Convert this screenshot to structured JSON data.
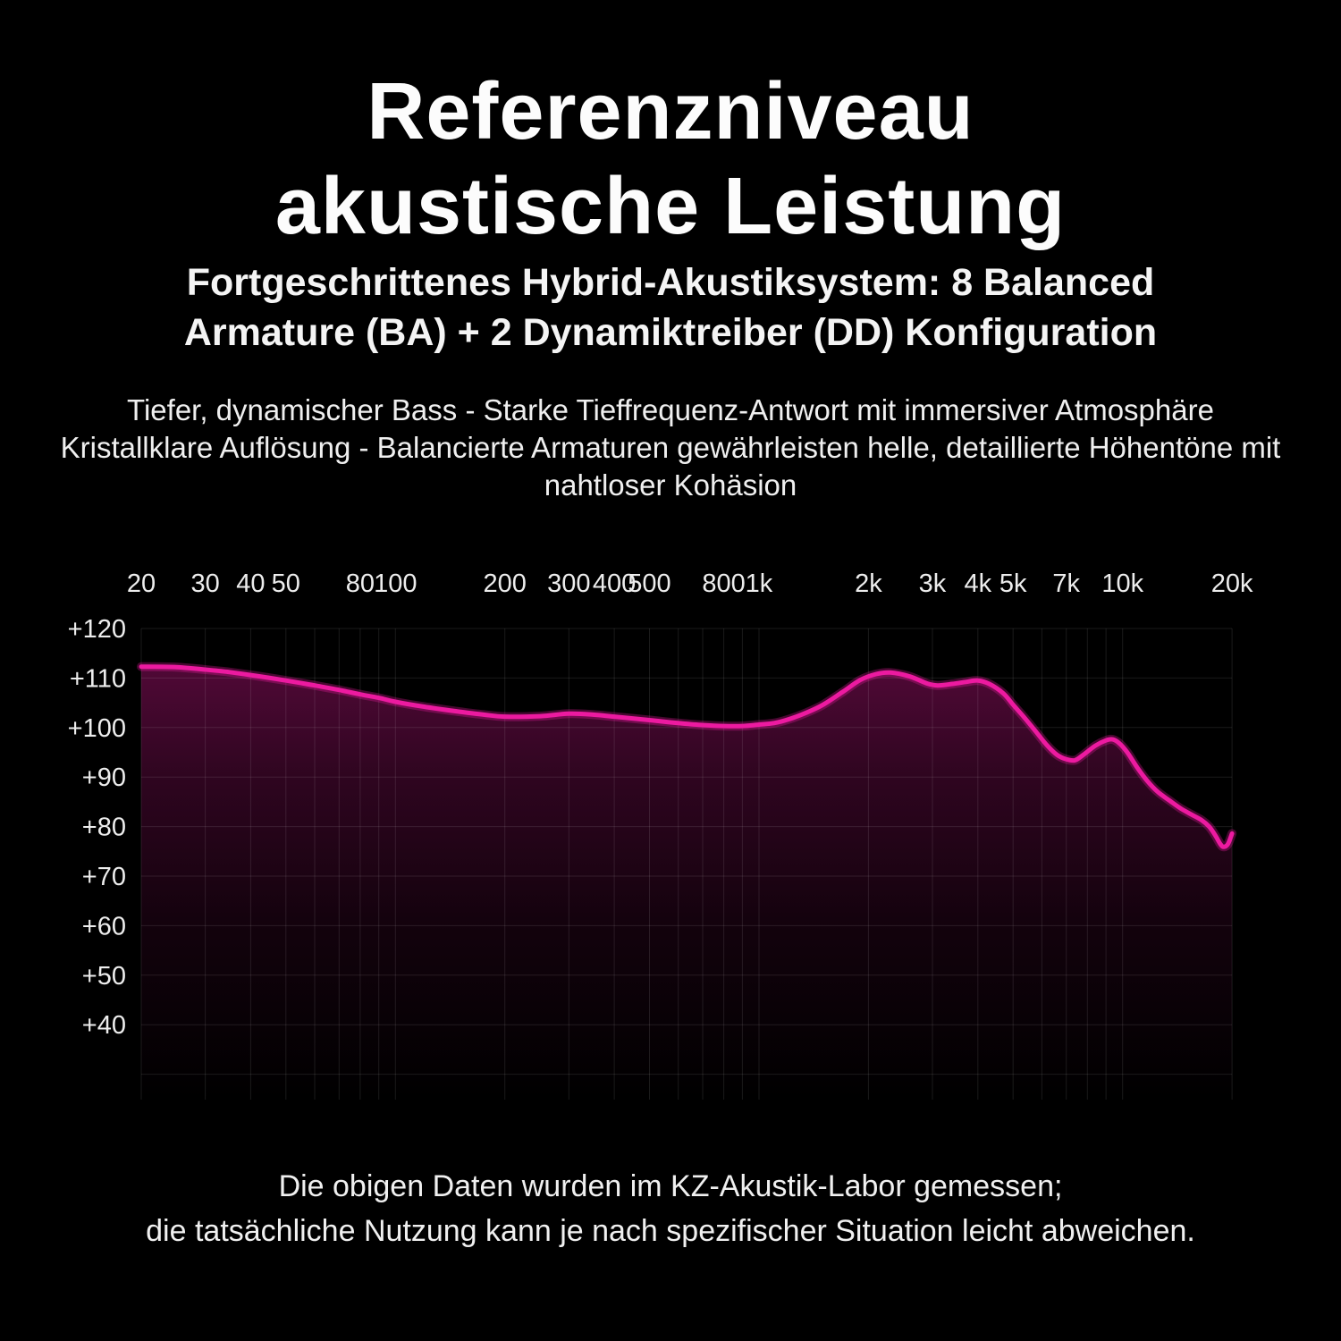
{
  "page": {
    "background": "#000000",
    "accent": "#ec1aa0"
  },
  "header": {
    "title_line1": "Referenzniveau",
    "title_line2": "akustische Leistung",
    "subtitle_line1": "Fortgeschrittenes Hybrid-Akustiksystem: 8 Balanced",
    "subtitle_line2": "Armature (BA) + 2 Dynamiktreiber (DD) Konfiguration",
    "description_line1": "Tiefer, dynamischer Bass - Starke Tieffrequenz-Antwort mit immersiver Atmosphäre",
    "description_line2": "Kristallklare Auflösung - Balancierte Armaturen gewährleisten helle, detaillierte Höhentöne mit",
    "description_line3": "nahtloser Kohäsion"
  },
  "footer": {
    "line1": "Die obigen Daten wurden im KZ-Akustik-Labor gemessen;",
    "line2": "die tatsächliche Nutzung kann je nach spezifischer Situation leicht abweichen."
  },
  "chart_data": {
    "type": "line",
    "title": "",
    "xlabel": "",
    "ylabel": "",
    "x_scale": "log",
    "x_range_hz": [
      20,
      20000
    ],
    "ylim": [
      30,
      122
    ],
    "grid": true,
    "legend": false,
    "line_color": "#ec1aa0",
    "tick_color": "#ededed",
    "grid_color": "rgba(255,255,255,0.10)",
    "x_ticks": [
      {
        "f": 20,
        "label": "20"
      },
      {
        "f": 30,
        "label": "30"
      },
      {
        "f": 40,
        "label": "40"
      },
      {
        "f": 50,
        "label": "50"
      },
      {
        "f": 80,
        "label": "80"
      },
      {
        "f": 100,
        "label": "100"
      },
      {
        "f": 200,
        "label": "200"
      },
      {
        "f": 300,
        "label": "300"
      },
      {
        "f": 400,
        "label": "400"
      },
      {
        "f": 500,
        "label": "500"
      },
      {
        "f": 800,
        "label": "800"
      },
      {
        "f": 1000,
        "label": "1k"
      },
      {
        "f": 2000,
        "label": "2k"
      },
      {
        "f": 3000,
        "label": "3k"
      },
      {
        "f": 4000,
        "label": "4k"
      },
      {
        "f": 5000,
        "label": "5k"
      },
      {
        "f": 7000,
        "label": "7k"
      },
      {
        "f": 10000,
        "label": "10k"
      },
      {
        "f": 20000,
        "label": "20k"
      }
    ],
    "y_ticks": [
      {
        "v": 120,
        "label": "+120"
      },
      {
        "v": 110,
        "label": "+110"
      },
      {
        "v": 100,
        "label": "+100"
      },
      {
        "v": 90,
        "label": "+90"
      },
      {
        "v": 80,
        "label": "+80"
      },
      {
        "v": 70,
        "label": "+70"
      },
      {
        "v": 60,
        "label": "+60"
      },
      {
        "v": 50,
        "label": "+50"
      },
      {
        "v": 40,
        "label": "+40"
      }
    ],
    "grid_freqs": [
      20,
      30,
      40,
      50,
      60,
      70,
      80,
      90,
      100,
      200,
      300,
      400,
      500,
      600,
      700,
      800,
      900,
      1000,
      2000,
      3000,
      4000,
      5000,
      6000,
      7000,
      8000,
      9000,
      10000,
      20000
    ],
    "y_grid": [
      120,
      110,
      100,
      90,
      80,
      70,
      60,
      50,
      40,
      30
    ],
    "area_gradient": [
      [
        "0%",
        "#ec1aa0",
        0.34
      ],
      [
        "25%",
        "#ec1aa0",
        0.2
      ],
      [
        "60%",
        "#ec1aa0",
        0.08
      ],
      [
        "100%",
        "#ec1aa0",
        0.0
      ]
    ],
    "series": [
      {
        "name": "frequency-response-db",
        "points": [
          [
            20,
            112.3
          ],
          [
            25,
            112.2
          ],
          [
            30,
            111.7
          ],
          [
            35,
            111.2
          ],
          [
            40,
            110.6
          ],
          [
            50,
            109.5
          ],
          [
            60,
            108.5
          ],
          [
            70,
            107.6
          ],
          [
            80,
            106.7
          ],
          [
            90,
            106.0
          ],
          [
            100,
            105.2
          ],
          [
            120,
            104.2
          ],
          [
            150,
            103.2
          ],
          [
            175,
            102.6
          ],
          [
            200,
            102.2
          ],
          [
            250,
            102.3
          ],
          [
            300,
            102.8
          ],
          [
            350,
            102.6
          ],
          [
            400,
            102.2
          ],
          [
            500,
            101.5
          ],
          [
            600,
            100.9
          ],
          [
            700,
            100.5
          ],
          [
            800,
            100.3
          ],
          [
            900,
            100.3
          ],
          [
            1000,
            100.6
          ],
          [
            1100,
            100.9
          ],
          [
            1200,
            101.6
          ],
          [
            1350,
            103.0
          ],
          [
            1500,
            104.6
          ],
          [
            1700,
            107.2
          ],
          [
            1900,
            109.6
          ],
          [
            2100,
            110.8
          ],
          [
            2300,
            111.1
          ],
          [
            2600,
            110.3
          ],
          [
            2900,
            108.9
          ],
          [
            3100,
            108.5
          ],
          [
            3400,
            108.8
          ],
          [
            3700,
            109.2
          ],
          [
            4000,
            109.5
          ],
          [
            4300,
            108.8
          ],
          [
            4700,
            106.9
          ],
          [
            5000,
            104.6
          ],
          [
            5400,
            101.8
          ],
          [
            5800,
            99.0
          ],
          [
            6200,
            96.4
          ],
          [
            6600,
            94.5
          ],
          [
            7000,
            93.6
          ],
          [
            7400,
            93.4
          ],
          [
            7800,
            94.5
          ],
          [
            8400,
            96.3
          ],
          [
            9000,
            97.4
          ],
          [
            9400,
            97.6
          ],
          [
            9800,
            96.8
          ],
          [
            10300,
            95.0
          ],
          [
            11000,
            91.8
          ],
          [
            11700,
            89.2
          ],
          [
            12500,
            87.0
          ],
          [
            13500,
            85.2
          ],
          [
            14500,
            83.6
          ],
          [
            15500,
            82.4
          ],
          [
            16500,
            81.3
          ],
          [
            17300,
            80.0
          ],
          [
            18000,
            78.2
          ],
          [
            18600,
            76.4
          ],
          [
            19000,
            75.9
          ],
          [
            19500,
            76.5
          ],
          [
            20000,
            78.6
          ]
        ]
      }
    ]
  }
}
